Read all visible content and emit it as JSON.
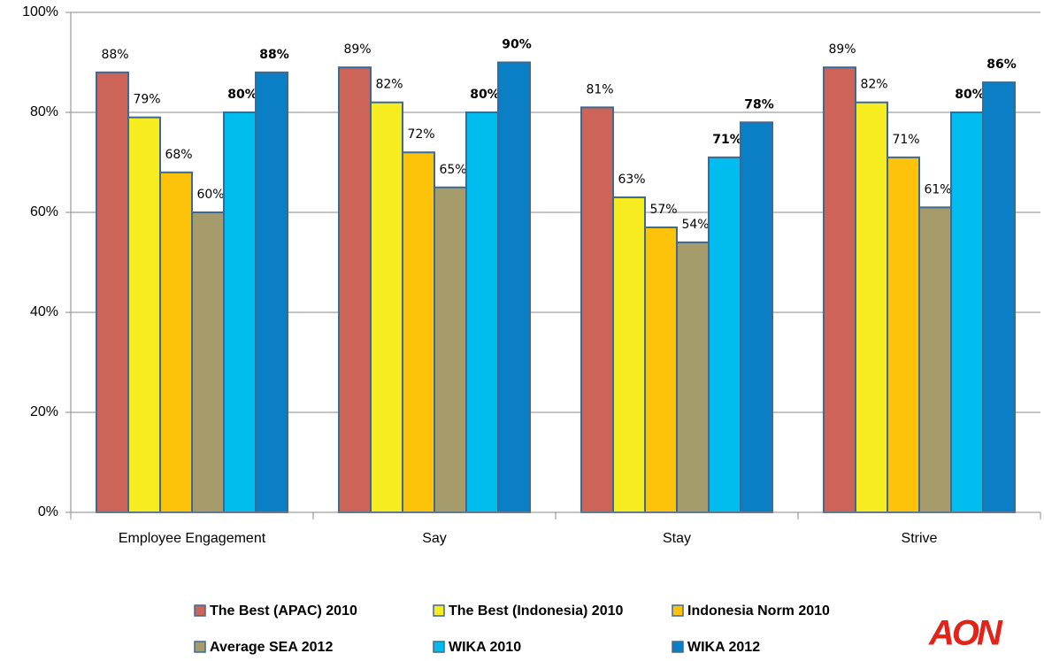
{
  "chart_data": {
    "type": "bar",
    "categories": [
      "Employee Engagement",
      "Say",
      "Stay",
      "Strive"
    ],
    "series": [
      {
        "name": "The Best (APAC) 2010",
        "color": "#cd6458",
        "values": [
          88,
          89,
          81,
          89
        ],
        "value_labels": [
          "88%",
          "89%",
          "81%",
          "89%"
        ]
      },
      {
        "name": "The Best (Indonesia) 2010",
        "color": "#f7ec20",
        "values": [
          79,
          82,
          63,
          82
        ],
        "value_labels": [
          "79%",
          "82%",
          "63%",
          "82%"
        ]
      },
      {
        "name": "Indonesia Norm 2010",
        "color": "#fcc30a",
        "values": [
          68,
          72,
          57,
          71
        ],
        "value_labels": [
          "68%",
          "72%",
          "57%",
          "71%"
        ]
      },
      {
        "name": "Average SEA 2012",
        "color": "#a69b6a",
        "values": [
          60,
          65,
          54,
          61
        ],
        "value_labels": [
          "60%",
          "65%",
          "54%",
          "61%"
        ]
      },
      {
        "name": "WIKA 2010",
        "color": "#00bcef",
        "values": [
          80,
          80,
          71,
          80
        ],
        "value_labels": [
          "80%",
          "80%",
          "71%",
          "80%"
        ]
      },
      {
        "name": "WIKA 2012",
        "color": "#0a7fc6",
        "values": [
          88,
          90,
          78,
          86
        ],
        "value_labels": [
          "88%",
          "90%",
          "78%",
          "86%"
        ]
      }
    ],
    "ylim": [
      0,
      100
    ],
    "yticks": [
      {
        "value": 0,
        "label": "0%"
      },
      {
        "value": 20,
        "label": "20%"
      },
      {
        "value": 40,
        "label": "40%"
      },
      {
        "value": 60,
        "label": "60%"
      },
      {
        "value": 80,
        "label": "80%"
      },
      {
        "value": 100,
        "label": "100%"
      }
    ],
    "grid": true,
    "legend": "bottom"
  },
  "logo": "AON"
}
